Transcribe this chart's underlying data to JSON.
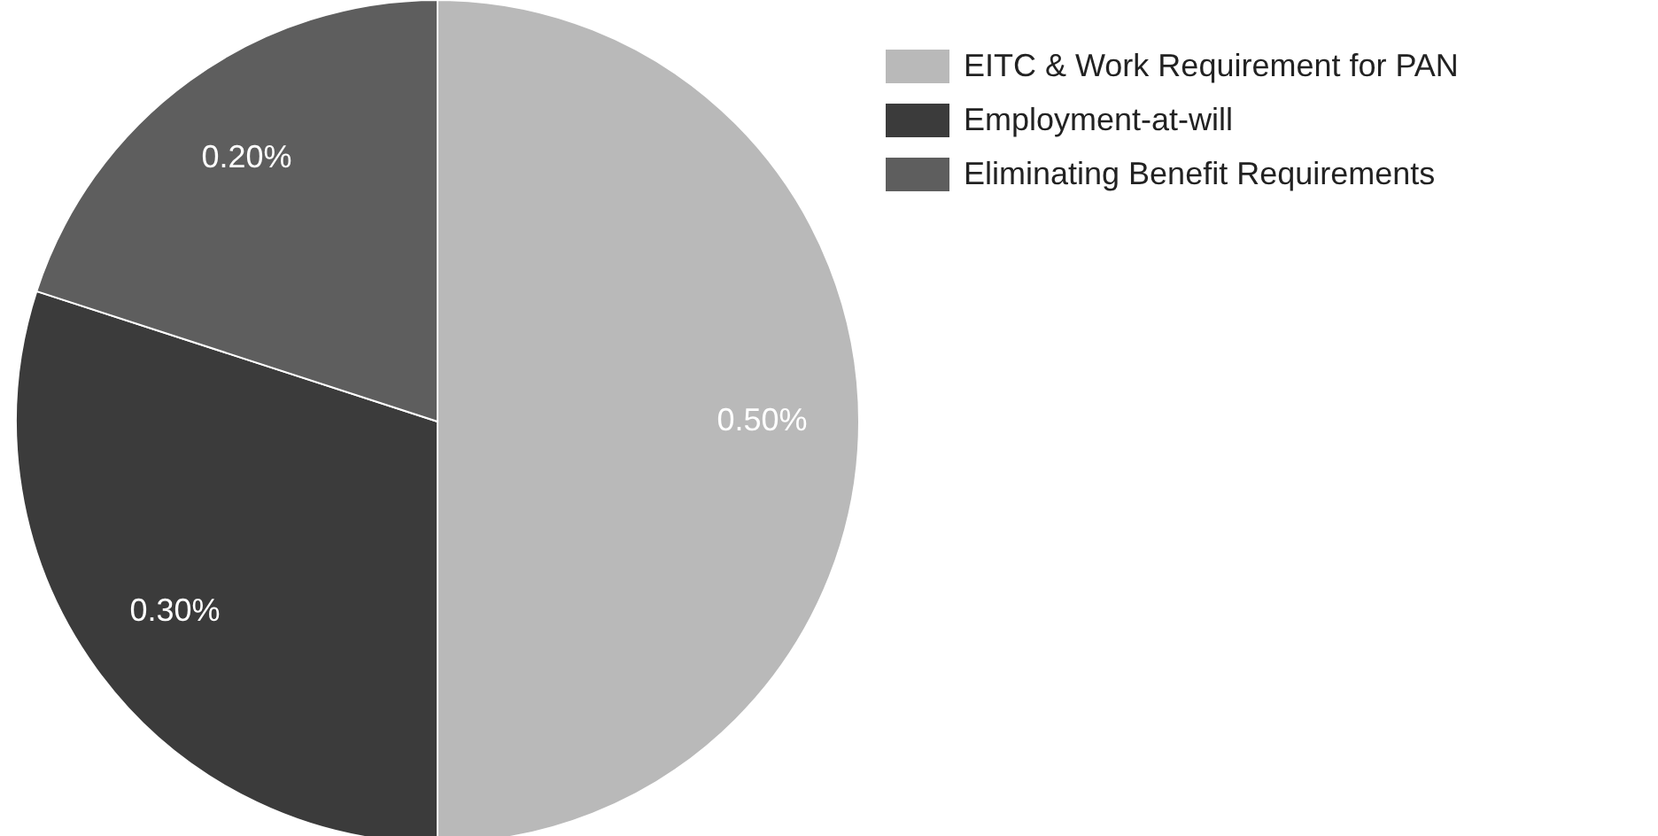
{
  "chart_data": {
    "type": "pie",
    "categories": [
      "EITC & Work Requirement for PAN",
      "Employment-at-will",
      "Eliminating Benefit Requirements"
    ],
    "values": [
      0.5,
      0.3,
      0.2
    ],
    "value_labels": [
      "0.50%",
      "0.30%",
      "0.20%"
    ],
    "colors": [
      "#b9b9b9",
      "#3b3b3b",
      "#5e5e5e"
    ],
    "legend": "top right"
  }
}
